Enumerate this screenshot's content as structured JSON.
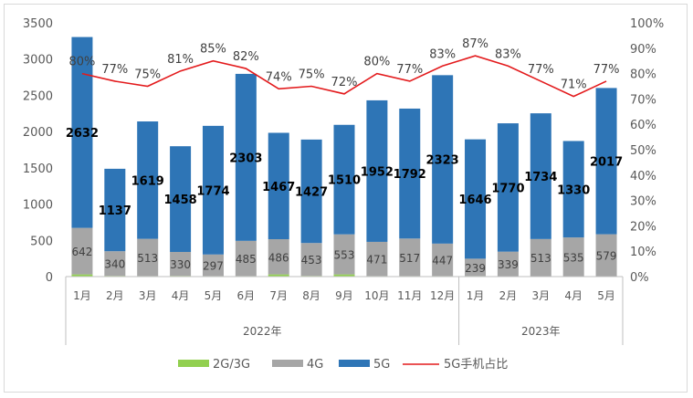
{
  "chart_data": {
    "type": "bar",
    "stacked": true,
    "title": "",
    "xlabel": "",
    "ylabel": "",
    "ylim": [
      0,
      3500
    ],
    "y_ticks": [
      0,
      500,
      1000,
      1500,
      2000,
      2500,
      3000,
      3500
    ],
    "y2lim": [
      0,
      100
    ],
    "y2_ticks": [
      "0%",
      "10%",
      "20%",
      "30%",
      "40%",
      "50%",
      "60%",
      "70%",
      "80%",
      "90%",
      "100%"
    ],
    "categories": [
      "1月",
      "2月",
      "3月",
      "4月",
      "5月",
      "6月",
      "7月",
      "8月",
      "9月",
      "10月",
      "11月",
      "12月",
      "1月",
      "2月",
      "3月",
      "4月",
      "5月"
    ],
    "groups": [
      {
        "label": "2022年",
        "count": 12
      },
      {
        "label": "2023年",
        "count": 5
      }
    ],
    "series": [
      {
        "name": "2G/3G",
        "type": "bar",
        "color": "#92d050",
        "values": [
          30,
          10,
          8,
          10,
          8,
          8,
          30,
          10,
          30,
          8,
          8,
          8,
          8,
          5,
          5,
          5,
          5
        ]
      },
      {
        "name": "4G",
        "type": "bar",
        "color": "#a6a6a6",
        "values": [
          642,
          340,
          513,
          330,
          297,
          485,
          486,
          453,
          553,
          471,
          517,
          447,
          239,
          339,
          513,
          535,
          579
        ]
      },
      {
        "name": "5G",
        "type": "bar",
        "color": "#2e75b6",
        "values": [
          2632,
          1137,
          1619,
          1458,
          1774,
          2303,
          1467,
          1427,
          1510,
          1952,
          1792,
          2323,
          1646,
          1770,
          1734,
          1330,
          2017
        ]
      },
      {
        "name": "5G手机占比",
        "type": "line",
        "axis": "right",
        "color": "#e31a1c",
        "values": [
          80,
          77,
          75,
          81,
          85,
          82,
          74,
          75,
          72,
          80,
          77,
          83,
          87,
          83,
          77,
          71,
          77
        ],
        "labels": [
          "80%",
          "77%",
          "75%",
          "81%",
          "85%",
          "82%",
          "74%",
          "75%",
          "72%",
          "80%",
          "77%",
          "83%",
          "87%",
          "83%",
          "77%",
          "71%",
          "77%"
        ]
      }
    ],
    "legend_position": "bottom",
    "grid": false
  }
}
